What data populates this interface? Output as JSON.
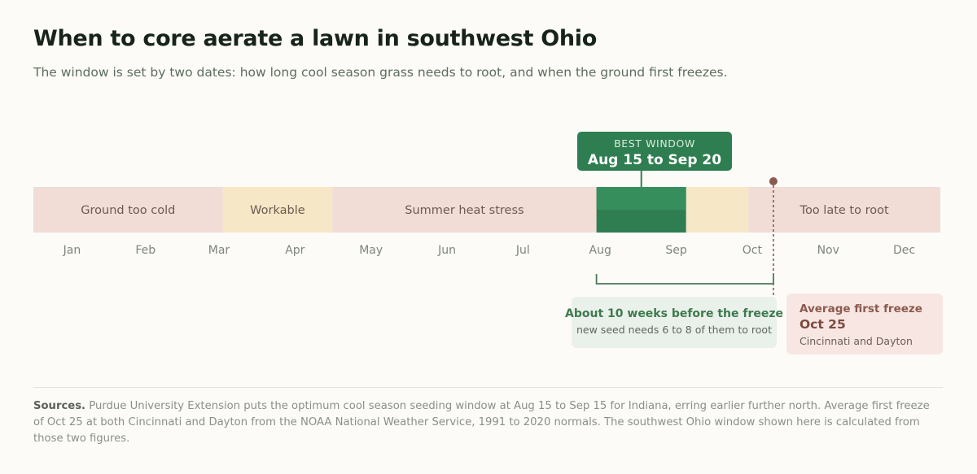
{
  "header": {
    "title": "When to core aerate a lawn in southwest Ohio",
    "subtitle": "The window is set by two dates: how long cool season grass needs to root, and when the ground first freezes."
  },
  "chart_data": {
    "type": "timeline",
    "months": [
      "Jan",
      "Feb",
      "Mar",
      "Apr",
      "May",
      "Jun",
      "Jul",
      "Aug",
      "Sep",
      "Oct",
      "Nov",
      "Dec"
    ],
    "bands": [
      {
        "start": "Jan 1",
        "end": "Mar 18",
        "label": "Ground too cold",
        "color": "#f1dcd6"
      },
      {
        "start": "Mar 18",
        "end": "May 1",
        "label": "Workable",
        "color": "#f6e7c6"
      },
      {
        "start": "May 1",
        "end": "Aug 15",
        "label": "Summer heat stress",
        "color": "#f1dcd6"
      },
      {
        "start": "Aug 15",
        "end": "Sep 20",
        "label": "",
        "color": "#2f7e51"
      },
      {
        "start": "Sep 20",
        "end": "Oct 15",
        "label": "",
        "color": "#f6e7c6"
      },
      {
        "start": "Oct 15",
        "end": "Dec 31",
        "label": "Too late to root",
        "color": "#f1dcd6"
      }
    ],
    "best_window": {
      "heading": "BEST WINDOW",
      "range": "Aug 15 to Sep 20",
      "start": "Aug 15",
      "end": "Sep 20"
    },
    "rooting_span": {
      "start": "Aug 15",
      "end": "Oct 25",
      "heading": "About 10 weeks before the freeze",
      "note": "new seed needs 6 to 8 of them to root"
    },
    "first_freeze": {
      "date": "Oct 25",
      "heading": "Average first freeze",
      "value": "Oct 25",
      "note": "Cincinnati and Dayton"
    },
    "colors": {
      "unfavorable": "#f1dcd6",
      "workable": "#f6e7c6",
      "best": "#2f7e51",
      "freeze_marker": "#8b5a4e",
      "rooting_bracket": "#4a7a55"
    }
  },
  "footer": {
    "sources_label": "Sources.",
    "sources_text": " Purdue University Extension puts the optimum cool season seeding window at Aug 15 to Sep 15 for Indiana, erring earlier further north. Average first freeze of Oct 25 at both Cincinnati and Dayton from the NOAA National Weather Service, 1991 to 2020 normals. The southwest Ohio window shown here is calculated from those two figures."
  }
}
